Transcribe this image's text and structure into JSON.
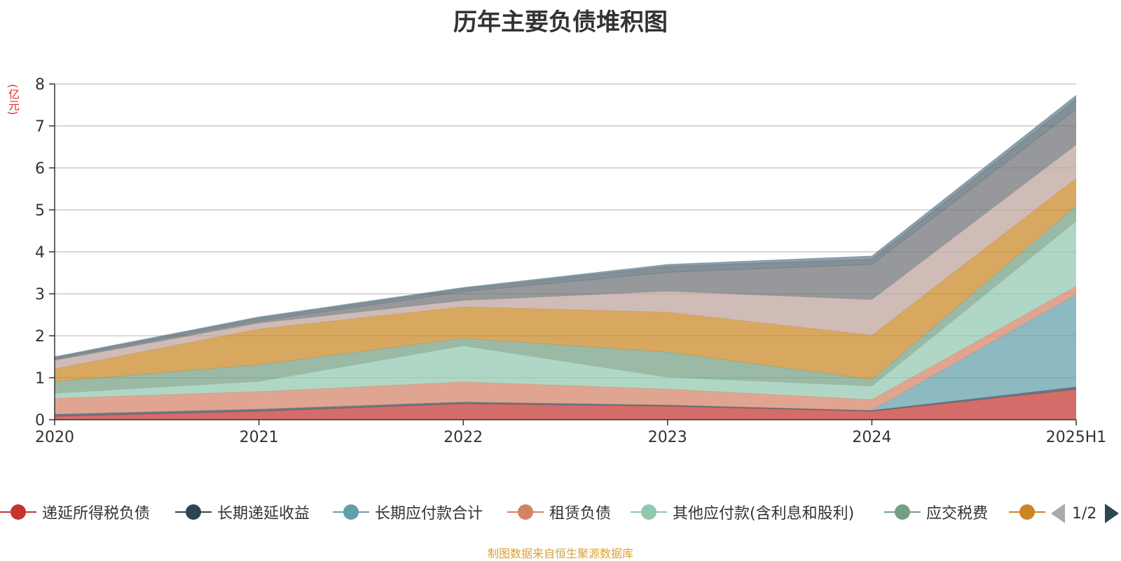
{
  "title": "历年主要负债堆积图",
  "footer": "制图数据来自恒生聚源数据库",
  "legend_pager": "1/2",
  "chart_data": {
    "type": "area",
    "stacked": true,
    "title": "历年主要负债堆积图",
    "ylabel": "(亿元)",
    "ylim": [
      0,
      8
    ],
    "yticks": [
      "0",
      "1",
      "2",
      "3",
      "4",
      "5",
      "6",
      "7",
      "8"
    ],
    "categories": [
      "2020",
      "2021",
      "2022",
      "2023",
      "2024",
      "2025H1"
    ],
    "grid": true,
    "legend_position": "bottom",
    "series": [
      {
        "name": "递延所得税负债",
        "color": "#c23531",
        "values": [
          0.08,
          0.2,
          0.38,
          0.32,
          0.2,
          0.72
        ]
      },
      {
        "name": "长期递延收益",
        "color": "#2f4554",
        "values": [
          0.05,
          0.05,
          0.04,
          0.03,
          0.02,
          0.06
        ]
      },
      {
        "name": "长期应付款合计",
        "color": "#61a0a8",
        "values": [
          0,
          0,
          0,
          0,
          0,
          2.2
        ]
      },
      {
        "name": "租赁负债",
        "color": "#d48265",
        "values": [
          0.38,
          0.42,
          0.48,
          0.38,
          0.26,
          0.2
        ]
      },
      {
        "name": "其他应付款(含利息和股利)",
        "color": "#91c7ae",
        "values": [
          0.12,
          0.24,
          0.86,
          0.28,
          0.32,
          1.55
        ]
      },
      {
        "name": "应交税费",
        "color": "#749f83",
        "values": [
          0.28,
          0.4,
          0.18,
          0.6,
          0.16,
          0.37
        ]
      },
      {
        "name": "",
        "color": "#ca8622",
        "values": [
          0.3,
          0.85,
          0.75,
          0.95,
          1.05,
          0.65
        ]
      },
      {
        "name": "",
        "color": "#bda29a",
        "values": [
          0.2,
          0.14,
          0.15,
          0.5,
          0.85,
          0.8
        ]
      },
      {
        "name": "",
        "color": "#6e7074",
        "values": [
          0.03,
          0.05,
          0.21,
          0.45,
          0.84,
          0.85
        ]
      },
      {
        "name": "",
        "color": "#546570",
        "values": [
          0.04,
          0.07,
          0.07,
          0.14,
          0.12,
          0.23
        ]
      },
      {
        "name": "",
        "color": "#5f7b8a",
        "values": [
          0.02,
          0.03,
          0.03,
          0.05,
          0.08,
          0.1
        ]
      }
    ]
  }
}
